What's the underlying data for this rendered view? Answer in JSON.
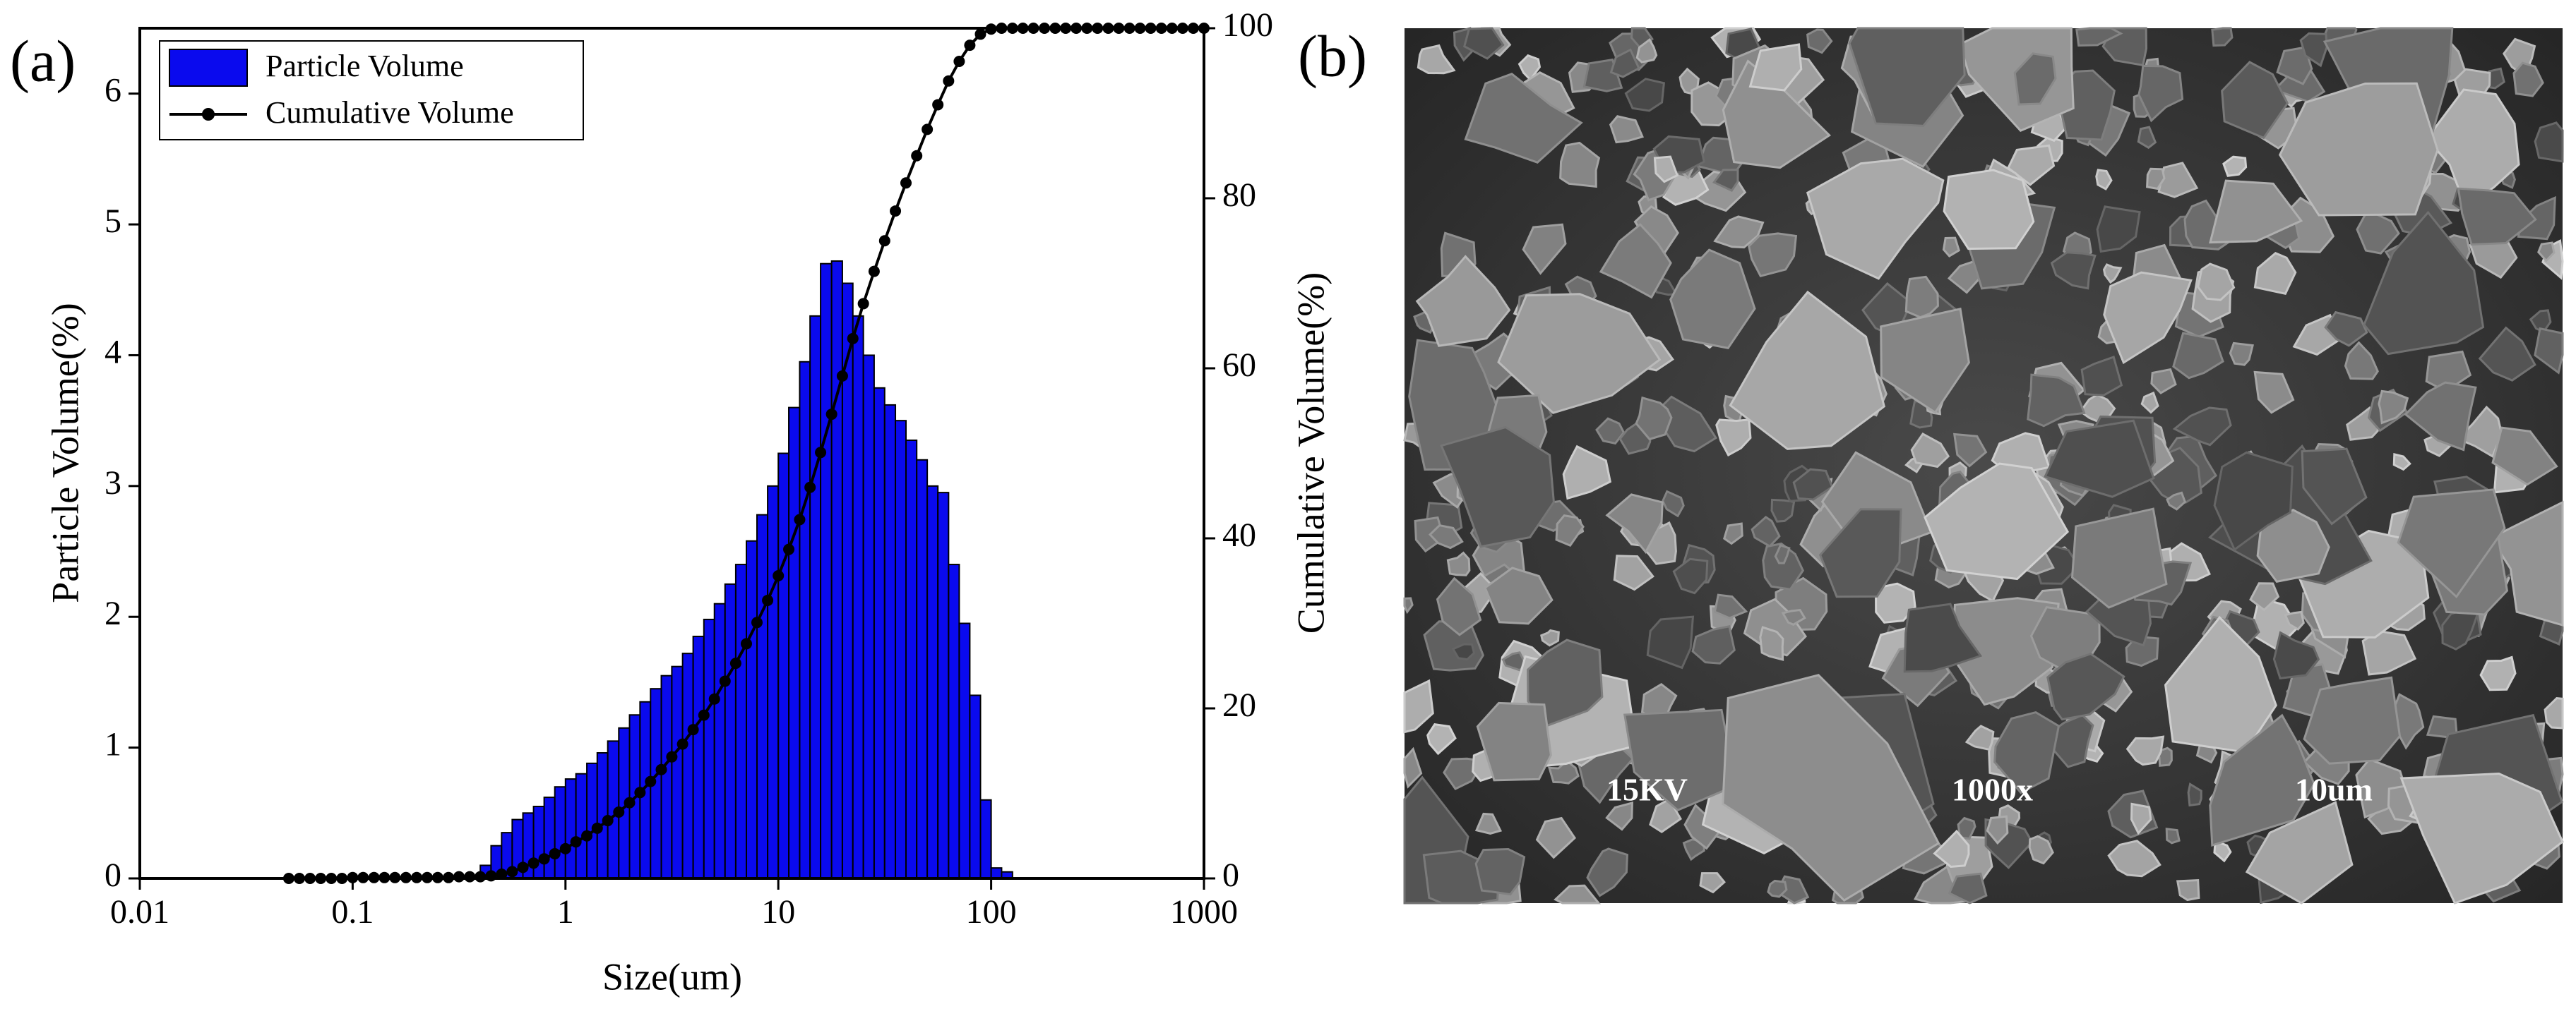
{
  "panel_labels": [
    "(a)",
    "(b)"
  ],
  "micrograph_labels": [
    "15KV",
    "1000x",
    "10um"
  ],
  "chart_data": {
    "type": "histogram",
    "xlabel": "Size(um)",
    "ylabel": "Particle Volume(%)",
    "y2label": "Cumulative Volume(%)",
    "xscale": "log",
    "xlim": [
      0.01,
      1000
    ],
    "xticks": [
      0.01,
      0.1,
      1,
      10,
      100,
      1000
    ],
    "ylim": [
      0,
      6.5
    ],
    "yticks": [
      0,
      1,
      2,
      3,
      4,
      5,
      6
    ],
    "y2lim": [
      0,
      100
    ],
    "y2ticks": [
      0,
      20,
      40,
      60,
      80,
      100
    ],
    "legend": "upper left",
    "bins": [
      0.0501,
      0.0562,
      0.0631,
      0.0708,
      0.0794,
      0.0891,
      0.1,
      0.112,
      0.126,
      0.141,
      0.158,
      0.178,
      0.2,
      0.224,
      0.251,
      0.282,
      0.316,
      0.355,
      0.398,
      0.447,
      0.501,
      0.562,
      0.631,
      0.708,
      0.794,
      0.891,
      1,
      1.12,
      1.26,
      1.41,
      1.58,
      1.78,
      2,
      2.24,
      2.51,
      2.82,
      3.16,
      3.55,
      3.98,
      4.47,
      5.01,
      5.62,
      6.31,
      7.08,
      7.94,
      8.91,
      10,
      11.2,
      12.6,
      14.1,
      15.8,
      17.8,
      20,
      22.4,
      25.1,
      28.2,
      31.6,
      35.5,
      39.8,
      44.7,
      50.1,
      56.2,
      63.1,
      70.8,
      79.4,
      89.1,
      100,
      112,
      126
    ],
    "series": [
      {
        "name": "Particle Volume",
        "color": "#0a0aee",
        "values": [
          0.01,
          0.01,
          0.01,
          0.01,
          0.01,
          0.01,
          0.01,
          0.01,
          0.01,
          0.01,
          0.01,
          0.01,
          0.01,
          0.01,
          0.01,
          0.01,
          0.01,
          0.01,
          0.1,
          0.25,
          0.35,
          0.45,
          0.5,
          0.55,
          0.62,
          0.7,
          0.76,
          0.8,
          0.88,
          0.96,
          1.05,
          1.15,
          1.25,
          1.35,
          1.45,
          1.55,
          1.62,
          1.72,
          1.85,
          1.98,
          2.1,
          2.25,
          2.4,
          2.58,
          2.78,
          3.0,
          3.25,
          3.6,
          3.95,
          4.3,
          4.7,
          4.72,
          4.55,
          4.3,
          4.0,
          3.75,
          3.62,
          3.5,
          3.35,
          3.2,
          3.0,
          2.95,
          2.4,
          1.95,
          1.4,
          0.6,
          0.08,
          0.05
        ]
      },
      {
        "name": "Cumulative Volume",
        "color": "#000000",
        "type": "line",
        "axis": "y2",
        "x": [
          0.0501,
          0.0562,
          0.0631,
          0.0708,
          0.0794,
          0.0891,
          0.1,
          0.112,
          0.126,
          0.141,
          0.158,
          0.178,
          0.2,
          0.224,
          0.251,
          0.282,
          0.316,
          0.355,
          0.398,
          0.447,
          0.501,
          0.562,
          0.631,
          0.708,
          0.794,
          0.891,
          1,
          1.12,
          1.26,
          1.41,
          1.58,
          1.78,
          2,
          2.24,
          2.51,
          2.82,
          3.16,
          3.55,
          3.98,
          4.47,
          5.01,
          5.62,
          6.31,
          7.08,
          7.94,
          8.91,
          10,
          11.2,
          12.6,
          14.1,
          15.8,
          17.8,
          20,
          22.4,
          25.1,
          28.2,
          31.6,
          35.5,
          39.8,
          44.7,
          50.1,
          56.2,
          63.1,
          70.8,
          79.4,
          89.1,
          100,
          112,
          126,
          141,
          158,
          178,
          200,
          224,
          251,
          282,
          316,
          355,
          398,
          447,
          501,
          562,
          631,
          708,
          794,
          891,
          1000
        ],
        "values": [
          0,
          0,
          0,
          0,
          0,
          0,
          0.1,
          0.1,
          0.1,
          0.1,
          0.1,
          0.1,
          0.1,
          0.1,
          0.1,
          0.1,
          0.2,
          0.2,
          0.2,
          0.3,
          0.5,
          0.8,
          1.3,
          1.8,
          2.3,
          2.9,
          3.5,
          4.3,
          5.0,
          5.9,
          6.8,
          7.8,
          8.9,
          10.1,
          11.4,
          12.8,
          14.3,
          15.8,
          17.5,
          19.2,
          21.1,
          23.2,
          25.3,
          27.6,
          30.1,
          32.7,
          35.6,
          38.7,
          42.2,
          46.0,
          50.1,
          54.6,
          59.1,
          63.5,
          67.6,
          71.4,
          75.0,
          78.5,
          81.8,
          85.0,
          88.1,
          91.0,
          93.8,
          96.1,
          98.0,
          99.3,
          99.9,
          100,
          100,
          100,
          100,
          100,
          100,
          100,
          100,
          100,
          100,
          100,
          100,
          100,
          100,
          100,
          100,
          100,
          100,
          100,
          100
        ]
      }
    ]
  }
}
